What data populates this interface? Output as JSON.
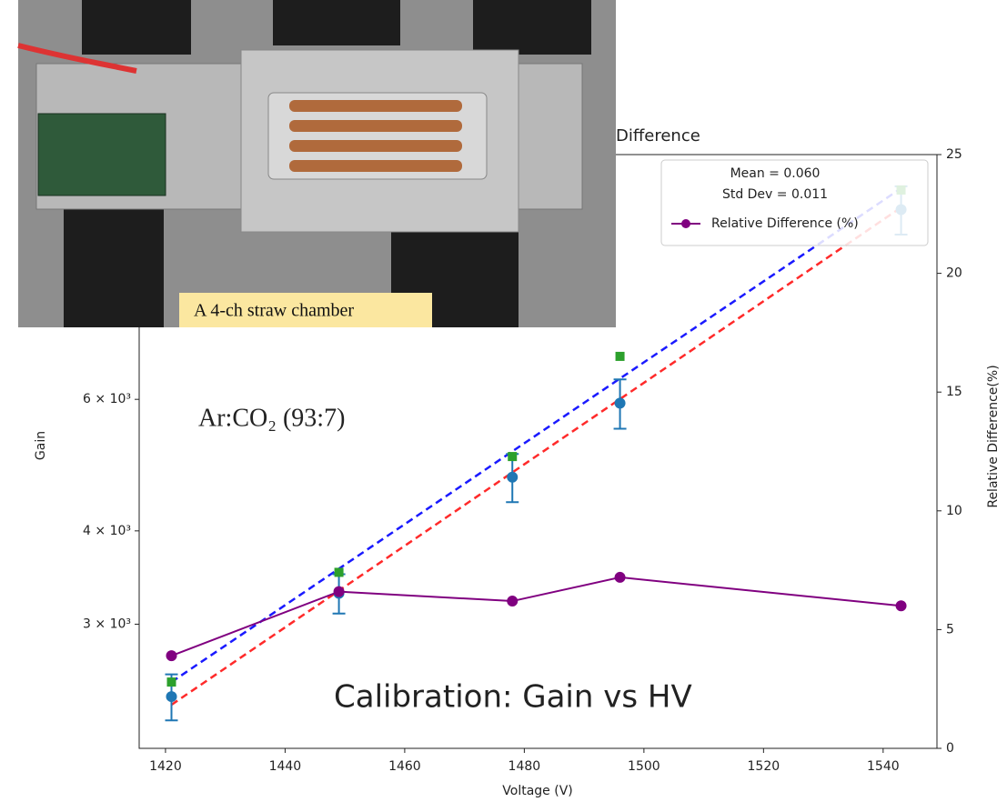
{
  "chart_data": {
    "type": "line",
    "title": "Difference",
    "xlabel": "Voltage (V)",
    "ylabel": "Gain",
    "y2label": "Relative Difference(%)",
    "x": [
      1421,
      1449,
      1478,
      1496,
      1543
    ],
    "xlim": [
      1415.6,
      1549
    ],
    "xticks": [
      1420,
      1440,
      1460,
      1480,
      1500,
      1520,
      1540
    ],
    "log_y": true,
    "ylim": [
      2046,
      12760
    ],
    "yticks": [
      {
        "value": 3000,
        "label": "3 × 10³"
      },
      {
        "value": 4000,
        "label": "4 × 10³"
      },
      {
        "value": 6000,
        "label": "6 × 10³"
      }
    ],
    "y2lim": [
      0,
      25
    ],
    "y2ticks": [
      0,
      5,
      10,
      15,
      20,
      25
    ],
    "series": [
      {
        "color": "#1f77b4",
        "marker": "circle",
        "values": [
          2400,
          3300,
          4720,
          5930,
          10770
        ],
        "errors": [
          170,
          200,
          350,
          450,
          800
        ]
      },
      {
        "color": "#2ca02c",
        "marker": "square",
        "values": [
          2510,
          3520,
          5030,
          6850,
          11440
        ]
      },
      {
        "name": "Relative Difference (%)",
        "color": "#800080",
        "marker": "circle",
        "axis": "y2",
        "values": [
          3.9,
          6.6,
          6.2,
          7.2,
          6.0
        ]
      }
    ],
    "fits": [
      {
        "color": "#1a1aff",
        "x": [
          1421,
          1543
        ],
        "values": [
          2510,
          11500
        ]
      },
      {
        "color": "#ff2a2a",
        "x": [
          1421,
          1543
        ],
        "values": [
          2340,
          10840
        ]
      }
    ],
    "legend_text": [
      "Mean = 0.060",
      "Std Dev = 0.011"
    ],
    "annotations": [
      {
        "text": "Ar:CO₂ (93:7)",
        "color": "#e00000"
      },
      {
        "text": "Calibration: Gain vs HV",
        "color": "#000000"
      }
    ],
    "image_caption": "A 4-ch straw chamber"
  }
}
